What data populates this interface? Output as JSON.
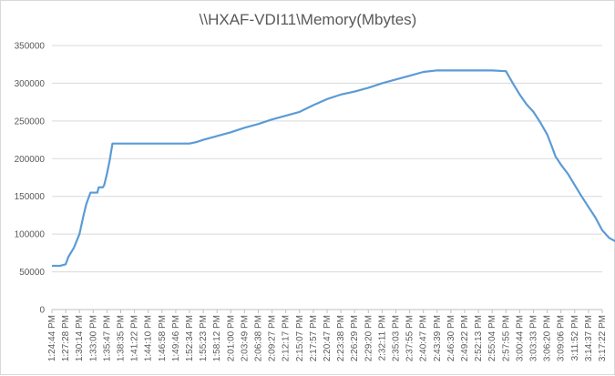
{
  "chart_data": {
    "type": "line",
    "title": "\\\\HXAF-VDI11\\Memory(Mbytes)",
    "xlabel": "",
    "ylabel": "",
    "ylim": [
      0,
      350000
    ],
    "yticks": [
      0,
      50000,
      100000,
      150000,
      200000,
      250000,
      300000,
      350000
    ],
    "ytick_labels": [
      "0",
      "50000",
      "100000",
      "150000",
      "200000",
      "250000",
      "300000",
      "350000"
    ],
    "grid": true,
    "legend": "none",
    "line_color": "#5b9bd5",
    "categories": [
      "1:24:44 PM",
      "1:27:28 PM",
      "1:30:14 PM",
      "1:33:00 PM",
      "1:35:47 PM",
      "1:38:35 PM",
      "1:41:22 PM",
      "1:44:10 PM",
      "1:46:58 PM",
      "1:49:46 PM",
      "1:52:34 PM",
      "1:55:23 PM",
      "1:58:12 PM",
      "2:01:00 PM",
      "2:03:49 PM",
      "2:06:38 PM",
      "2:09:27 PM",
      "2:12:17 PM",
      "2:15:07 PM",
      "2:17:57 PM",
      "2:20:47 PM",
      "2:23:38 PM",
      "2:26:29 PM",
      "2:29:20 PM",
      "2:32:11 PM",
      "2:35:03 PM",
      "2:37:55 PM",
      "2:40:47 PM",
      "2:43:39 PM",
      "2:46:30 PM",
      "2:49:22 PM",
      "2:52:13 PM",
      "2:55:04 PM",
      "2:57:55 PM",
      "3:00:44 PM",
      "3:03:33 PM",
      "3:06:20 PM",
      "3:09:06 PM",
      "3:11:52 PM",
      "3:14:37 PM",
      "3:17:22 PM"
    ],
    "series": [
      {
        "points": [
          [
            0,
            58000
          ],
          [
            0.6,
            58000
          ],
          [
            1.0,
            60000
          ],
          [
            1.2,
            70000
          ],
          [
            1.6,
            82000
          ],
          [
            2.0,
            100000
          ],
          [
            2.3,
            125000
          ],
          [
            2.5,
            140000
          ],
          [
            2.7,
            150000
          ],
          [
            2.8,
            155000
          ],
          [
            3.3,
            155000
          ],
          [
            3.4,
            162000
          ],
          [
            3.7,
            162000
          ],
          [
            3.8,
            165000
          ],
          [
            4.0,
            180000
          ],
          [
            4.2,
            198000
          ],
          [
            4.4,
            220000
          ],
          [
            9.0,
            220000
          ],
          [
            10.0,
            220000
          ],
          [
            10.5,
            222000
          ],
          [
            11.0,
            225000
          ],
          [
            12.0,
            230000
          ],
          [
            13.0,
            235000
          ],
          [
            14.0,
            241000
          ],
          [
            15.0,
            246000
          ],
          [
            16.0,
            252000
          ],
          [
            17.0,
            257000
          ],
          [
            18.0,
            262000
          ],
          [
            19.0,
            271000
          ],
          [
            20.0,
            279000
          ],
          [
            21.0,
            285000
          ],
          [
            22.0,
            289000
          ],
          [
            23.0,
            294000
          ],
          [
            24.0,
            300000
          ],
          [
            25.0,
            305000
          ],
          [
            26.0,
            310000
          ],
          [
            27.0,
            315000
          ],
          [
            28.0,
            317000
          ],
          [
            32.0,
            317000
          ],
          [
            33.0,
            316000
          ],
          [
            33.5,
            300000
          ],
          [
            34.0,
            285000
          ],
          [
            34.5,
            272000
          ],
          [
            35.0,
            262000
          ],
          [
            35.5,
            248000
          ],
          [
            36.0,
            232000
          ],
          [
            36.3,
            218000
          ],
          [
            36.6,
            203000
          ],
          [
            37.0,
            192000
          ],
          [
            37.5,
            180000
          ],
          [
            38.0,
            165000
          ],
          [
            38.5,
            150000
          ],
          [
            39.0,
            136000
          ],
          [
            39.5,
            122000
          ],
          [
            40.0,
            105000
          ],
          [
            40.5,
            95000
          ],
          [
            41.0,
            90000
          ]
        ]
      }
    ]
  }
}
